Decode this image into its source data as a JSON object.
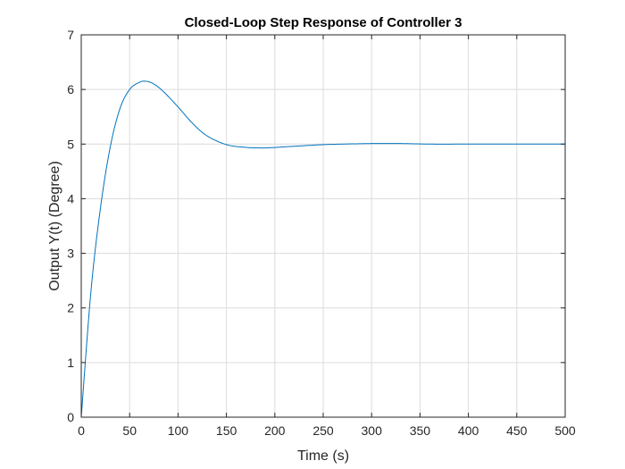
{
  "chart_data": {
    "type": "line",
    "title": "Closed-Loop Step Response of Controller 3",
    "xlabel": "Time (s)",
    "ylabel": "Output Y(t) (Degree)",
    "xlim": [
      0,
      500
    ],
    "ylim": [
      0,
      7
    ],
    "xticks": [
      0,
      50,
      100,
      150,
      200,
      250,
      300,
      350,
      400,
      450,
      500
    ],
    "yticks": [
      0,
      1,
      2,
      3,
      4,
      5,
      6,
      7
    ],
    "grid": true,
    "line_color": "#0072bd",
    "series": [
      {
        "x": [
          0,
          10,
          20,
          30,
          40,
          50,
          60,
          67,
          75,
          85,
          100,
          115,
          130,
          150,
          170,
          190,
          210,
          230,
          250,
          270,
          300,
          330,
          360,
          400,
          450,
          500
        ],
        "values": [
          0,
          2.3,
          3.85,
          4.95,
          5.65,
          6.0,
          6.13,
          6.15,
          6.1,
          5.96,
          5.68,
          5.38,
          5.15,
          4.99,
          4.94,
          4.93,
          4.95,
          4.97,
          4.99,
          5.0,
          5.01,
          5.01,
          5.0,
          5.0,
          5.0,
          5.0
        ]
      }
    ]
  }
}
